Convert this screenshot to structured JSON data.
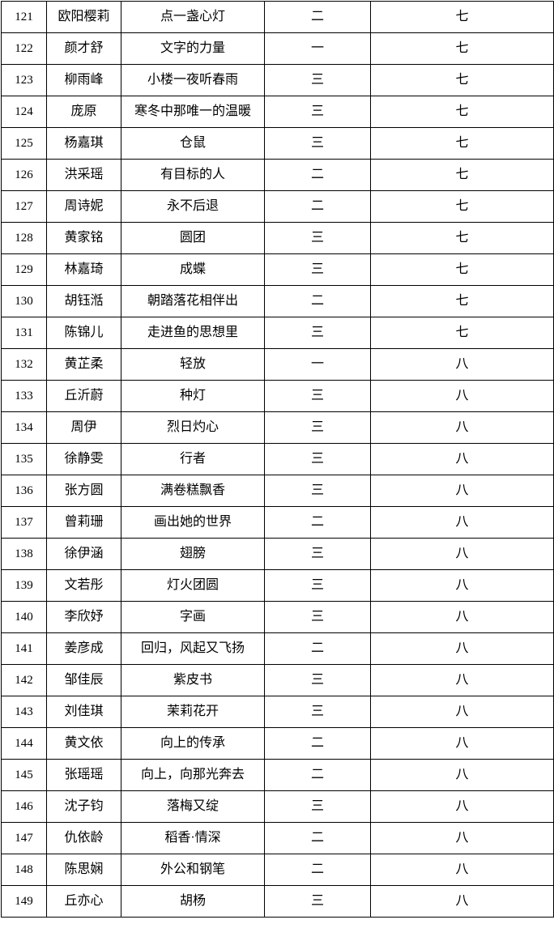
{
  "page": {
    "background_color": "#ffffff",
    "border_color": "#000000",
    "text_color": "#000000"
  },
  "table": {
    "row_count": 29,
    "columns_semantic": [
      "index",
      "name",
      "title",
      "level",
      "grade"
    ],
    "rows": [
      [
        "121",
        "欧阳樱莉",
        "点一盏心灯",
        "二",
        "七"
      ],
      [
        "122",
        "颜才舒",
        "文字的力量",
        "一",
        "七"
      ],
      [
        "123",
        "柳雨峰",
        "小楼一夜听春雨",
        "三",
        "七"
      ],
      [
        "124",
        "庞原",
        "寒冬中那唯一的温暖",
        "三",
        "七"
      ],
      [
        "125",
        "杨嘉琪",
        "仓鼠",
        "三",
        "七"
      ],
      [
        "126",
        "洪采瑶",
        "有目标的人",
        "二",
        "七"
      ],
      [
        "127",
        "周诗妮",
        "永不后退",
        "二",
        "七"
      ],
      [
        "128",
        "黄家铭",
        "圆团",
        "三",
        "七"
      ],
      [
        "129",
        "林嘉琦",
        "成蝶",
        "三",
        "七"
      ],
      [
        "130",
        "胡钰湉",
        "朝踏落花相伴出",
        "二",
        "七"
      ],
      [
        "131",
        "陈锦儿",
        "走进鱼的思想里",
        "三",
        "七"
      ],
      [
        "132",
        "黄芷柔",
        "轻放",
        "一",
        "八"
      ],
      [
        "133",
        "丘沂蔚",
        "种灯",
        "三",
        "八"
      ],
      [
        "134",
        "周伊",
        "烈日灼心",
        "三",
        "八"
      ],
      [
        "135",
        "徐静雯",
        "行者",
        "三",
        "八"
      ],
      [
        "136",
        "张方圆",
        "满卷糕飘香",
        "三",
        "八"
      ],
      [
        "137",
        "曾莉珊",
        "画出她的世界",
        "二",
        "八"
      ],
      [
        "138",
        "徐伊涵",
        "翅膀",
        "三",
        "八"
      ],
      [
        "139",
        "文若彤",
        "灯火团圆",
        "三",
        "八"
      ],
      [
        "140",
        "李欣妤",
        "字画",
        "三",
        "八"
      ],
      [
        "141",
        "姜彦成",
        "回归，风起又飞扬",
        "二",
        "八"
      ],
      [
        "142",
        "邹佳辰",
        "紫皮书",
        "三",
        "八"
      ],
      [
        "143",
        "刘佳琪",
        "茉莉花开",
        "三",
        "八"
      ],
      [
        "144",
        "黄文依",
        "向上的传承",
        "二",
        "八"
      ],
      [
        "145",
        "张瑶瑶",
        "向上，向那光奔去",
        "二",
        "八"
      ],
      [
        "146",
        "沈子钧",
        "落梅又绽",
        "三",
        "八"
      ],
      [
        "147",
        "仇依龄",
        "稻香·情深",
        "二",
        "八"
      ],
      [
        "148",
        "陈思娴",
        "外公和钢笔",
        "二",
        "八"
      ],
      [
        "149",
        "丘亦心",
        "胡杨",
        "三",
        "八"
      ]
    ]
  }
}
